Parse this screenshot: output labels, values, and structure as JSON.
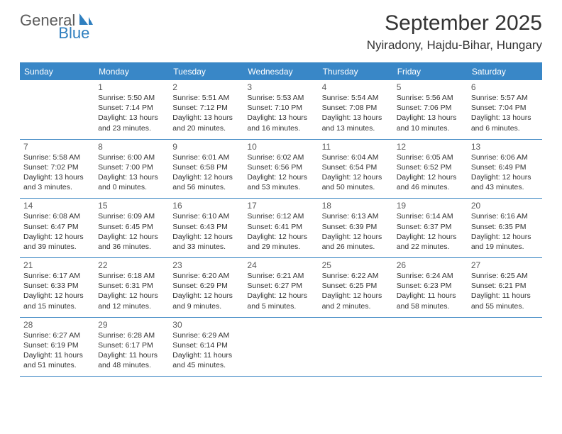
{
  "logo": {
    "part1": "General",
    "part2": "Blue"
  },
  "title": "September 2025",
  "location": "Nyiradony, Hajdu-Bihar, Hungary",
  "colors": {
    "header_bg": "#3987c7",
    "header_text": "#ffffff",
    "accent_line": "#2f7fbf",
    "logo_gray": "#5a5a5a",
    "logo_blue": "#2f7fbf",
    "text": "#333333",
    "daynum": "#5a5a5a",
    "background": "#ffffff"
  },
  "typography": {
    "title_fontsize": 30,
    "location_fontsize": 17,
    "dayheader_fontsize": 12,
    "daynum_fontsize": 12,
    "body_fontsize": 10.5,
    "logo_fontsize": 22
  },
  "layout": {
    "columns": 7,
    "rows": 5,
    "cell_min_height": 78
  },
  "day_names": [
    "Sunday",
    "Monday",
    "Tuesday",
    "Wednesday",
    "Thursday",
    "Friday",
    "Saturday"
  ],
  "weeks": [
    [
      null,
      {
        "n": "1",
        "sr": "Sunrise: 5:50 AM",
        "ss": "Sunset: 7:14 PM",
        "d1": "Daylight: 13 hours",
        "d2": "and 23 minutes."
      },
      {
        "n": "2",
        "sr": "Sunrise: 5:51 AM",
        "ss": "Sunset: 7:12 PM",
        "d1": "Daylight: 13 hours",
        "d2": "and 20 minutes."
      },
      {
        "n": "3",
        "sr": "Sunrise: 5:53 AM",
        "ss": "Sunset: 7:10 PM",
        "d1": "Daylight: 13 hours",
        "d2": "and 16 minutes."
      },
      {
        "n": "4",
        "sr": "Sunrise: 5:54 AM",
        "ss": "Sunset: 7:08 PM",
        "d1": "Daylight: 13 hours",
        "d2": "and 13 minutes."
      },
      {
        "n": "5",
        "sr": "Sunrise: 5:56 AM",
        "ss": "Sunset: 7:06 PM",
        "d1": "Daylight: 13 hours",
        "d2": "and 10 minutes."
      },
      {
        "n": "6",
        "sr": "Sunrise: 5:57 AM",
        "ss": "Sunset: 7:04 PM",
        "d1": "Daylight: 13 hours",
        "d2": "and 6 minutes."
      }
    ],
    [
      {
        "n": "7",
        "sr": "Sunrise: 5:58 AM",
        "ss": "Sunset: 7:02 PM",
        "d1": "Daylight: 13 hours",
        "d2": "and 3 minutes."
      },
      {
        "n": "8",
        "sr": "Sunrise: 6:00 AM",
        "ss": "Sunset: 7:00 PM",
        "d1": "Daylight: 13 hours",
        "d2": "and 0 minutes."
      },
      {
        "n": "9",
        "sr": "Sunrise: 6:01 AM",
        "ss": "Sunset: 6:58 PM",
        "d1": "Daylight: 12 hours",
        "d2": "and 56 minutes."
      },
      {
        "n": "10",
        "sr": "Sunrise: 6:02 AM",
        "ss": "Sunset: 6:56 PM",
        "d1": "Daylight: 12 hours",
        "d2": "and 53 minutes."
      },
      {
        "n": "11",
        "sr": "Sunrise: 6:04 AM",
        "ss": "Sunset: 6:54 PM",
        "d1": "Daylight: 12 hours",
        "d2": "and 50 minutes."
      },
      {
        "n": "12",
        "sr": "Sunrise: 6:05 AM",
        "ss": "Sunset: 6:52 PM",
        "d1": "Daylight: 12 hours",
        "d2": "and 46 minutes."
      },
      {
        "n": "13",
        "sr": "Sunrise: 6:06 AM",
        "ss": "Sunset: 6:49 PM",
        "d1": "Daylight: 12 hours",
        "d2": "and 43 minutes."
      }
    ],
    [
      {
        "n": "14",
        "sr": "Sunrise: 6:08 AM",
        "ss": "Sunset: 6:47 PM",
        "d1": "Daylight: 12 hours",
        "d2": "and 39 minutes."
      },
      {
        "n": "15",
        "sr": "Sunrise: 6:09 AM",
        "ss": "Sunset: 6:45 PM",
        "d1": "Daylight: 12 hours",
        "d2": "and 36 minutes."
      },
      {
        "n": "16",
        "sr": "Sunrise: 6:10 AM",
        "ss": "Sunset: 6:43 PM",
        "d1": "Daylight: 12 hours",
        "d2": "and 33 minutes."
      },
      {
        "n": "17",
        "sr": "Sunrise: 6:12 AM",
        "ss": "Sunset: 6:41 PM",
        "d1": "Daylight: 12 hours",
        "d2": "and 29 minutes."
      },
      {
        "n": "18",
        "sr": "Sunrise: 6:13 AM",
        "ss": "Sunset: 6:39 PM",
        "d1": "Daylight: 12 hours",
        "d2": "and 26 minutes."
      },
      {
        "n": "19",
        "sr": "Sunrise: 6:14 AM",
        "ss": "Sunset: 6:37 PM",
        "d1": "Daylight: 12 hours",
        "d2": "and 22 minutes."
      },
      {
        "n": "20",
        "sr": "Sunrise: 6:16 AM",
        "ss": "Sunset: 6:35 PM",
        "d1": "Daylight: 12 hours",
        "d2": "and 19 minutes."
      }
    ],
    [
      {
        "n": "21",
        "sr": "Sunrise: 6:17 AM",
        "ss": "Sunset: 6:33 PM",
        "d1": "Daylight: 12 hours",
        "d2": "and 15 minutes."
      },
      {
        "n": "22",
        "sr": "Sunrise: 6:18 AM",
        "ss": "Sunset: 6:31 PM",
        "d1": "Daylight: 12 hours",
        "d2": "and 12 minutes."
      },
      {
        "n": "23",
        "sr": "Sunrise: 6:20 AM",
        "ss": "Sunset: 6:29 PM",
        "d1": "Daylight: 12 hours",
        "d2": "and 9 minutes."
      },
      {
        "n": "24",
        "sr": "Sunrise: 6:21 AM",
        "ss": "Sunset: 6:27 PM",
        "d1": "Daylight: 12 hours",
        "d2": "and 5 minutes."
      },
      {
        "n": "25",
        "sr": "Sunrise: 6:22 AM",
        "ss": "Sunset: 6:25 PM",
        "d1": "Daylight: 12 hours",
        "d2": "and 2 minutes."
      },
      {
        "n": "26",
        "sr": "Sunrise: 6:24 AM",
        "ss": "Sunset: 6:23 PM",
        "d1": "Daylight: 11 hours",
        "d2": "and 58 minutes."
      },
      {
        "n": "27",
        "sr": "Sunrise: 6:25 AM",
        "ss": "Sunset: 6:21 PM",
        "d1": "Daylight: 11 hours",
        "d2": "and 55 minutes."
      }
    ],
    [
      {
        "n": "28",
        "sr": "Sunrise: 6:27 AM",
        "ss": "Sunset: 6:19 PM",
        "d1": "Daylight: 11 hours",
        "d2": "and 51 minutes."
      },
      {
        "n": "29",
        "sr": "Sunrise: 6:28 AM",
        "ss": "Sunset: 6:17 PM",
        "d1": "Daylight: 11 hours",
        "d2": "and 48 minutes."
      },
      {
        "n": "30",
        "sr": "Sunrise: 6:29 AM",
        "ss": "Sunset: 6:14 PM",
        "d1": "Daylight: 11 hours",
        "d2": "and 45 minutes."
      },
      null,
      null,
      null,
      null
    ]
  ]
}
